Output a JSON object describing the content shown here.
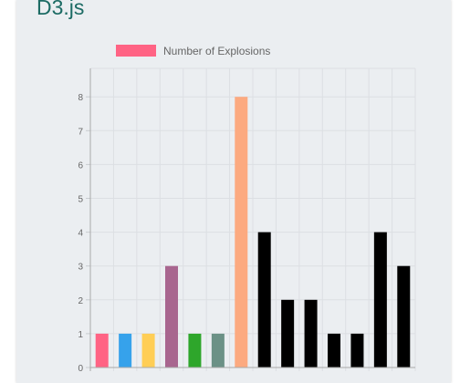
{
  "page": {
    "title": "D3.js"
  },
  "chart_data": {
    "type": "bar",
    "categories": [
      "",
      "",
      "",
      "",
      "",
      "",
      "",
      "",
      "",
      "",
      "",
      "",
      "",
      ""
    ],
    "series": [
      {
        "name": "Number of Explosions",
        "values": [
          1,
          1,
          1,
          3,
          1,
          1,
          8,
          4,
          2,
          2,
          1,
          1,
          4,
          3
        ],
        "colors": [
          "#ff6384",
          "#36a2eb",
          "#ffce56",
          "#a8668f",
          "#2ea62b",
          "#6b9186",
          "#fcaa80",
          "#000000",
          "#000000",
          "#000000",
          "#000000",
          "#000000",
          "#000000",
          "#000000"
        ]
      }
    ],
    "legend_swatch_color": "#ff6384",
    "yticks": [
      "0",
      "1",
      "2",
      "3",
      "4",
      "5",
      "6",
      "7",
      "8"
    ],
    "ylim": [
      0,
      8
    ],
    "grid": true,
    "legend_position": "top",
    "xlabel": "",
    "ylabel": ""
  }
}
